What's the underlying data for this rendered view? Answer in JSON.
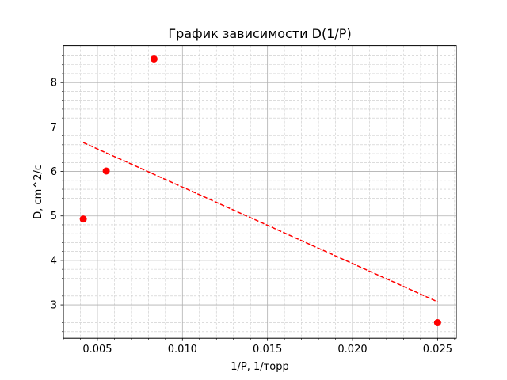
{
  "chart_data": {
    "type": "scatter",
    "title": "График зависимости D(1/P)",
    "xlabel": "1/P, 1/торр",
    "ylabel": "D, cm^2/c",
    "xlim": [
      0.003,
      0.0261
    ],
    "ylim": [
      2.25,
      8.83
    ],
    "xticks": [
      0.005,
      0.01,
      0.015,
      0.02,
      0.025
    ],
    "xtick_labels": [
      "0.005",
      "0.010",
      "0.015",
      "0.020",
      "0.025"
    ],
    "yticks": [
      3,
      4,
      5,
      6,
      7,
      8
    ],
    "ytick_labels": [
      "3",
      "4",
      "5",
      "6",
      "7",
      "8"
    ],
    "grid": true,
    "minor_grid": true,
    "series": [
      {
        "type": "scatter",
        "color": "#ff0000",
        "x": [
          0.00417,
          0.00552,
          0.00833,
          0.025
        ],
        "y": [
          4.93,
          6.01,
          8.53,
          2.6
        ]
      },
      {
        "type": "line",
        "style": "dashed",
        "color": "#ff0000",
        "x": [
          0.00417,
          0.025
        ],
        "y": [
          6.65,
          3.07
        ]
      }
    ]
  }
}
